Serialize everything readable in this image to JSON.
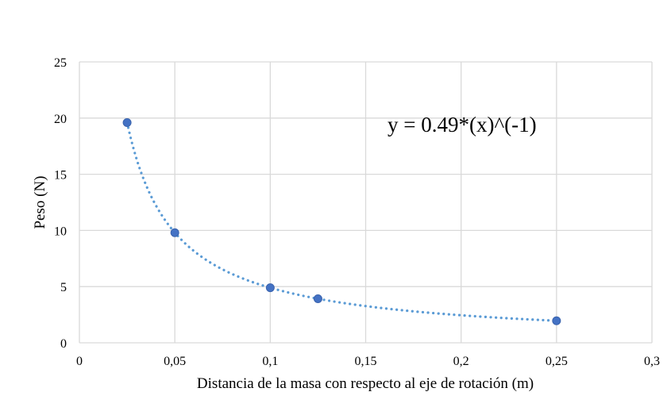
{
  "chart_data": {
    "type": "scatter",
    "title": "",
    "xlabel": "Distancia de la masa con respecto al eje de rotación (m)",
    "ylabel": "Peso  (N)",
    "xlim": [
      0,
      0.3
    ],
    "ylim": [
      0,
      25
    ],
    "x_tick_labels": [
      "0",
      "0,05",
      "0,1",
      "0,15",
      "0,2",
      "0,25",
      "0,3"
    ],
    "y_tick_labels": [
      "0",
      "5",
      "10",
      "15",
      "20",
      "25"
    ],
    "grid": true,
    "legend": "none",
    "series": [
      {
        "x": [
          0.025,
          0.05,
          0.1,
          0.125,
          0.25
        ],
        "y": [
          19.6,
          9.8,
          4.9,
          3.92,
          1.96
        ],
        "color": "#4472C4"
      }
    ],
    "trendline": {
      "type": "power",
      "coefficient": 0.49,
      "exponent": -1,
      "style": "dotted",
      "color": "#5B9BD5",
      "x_range": [
        0.025,
        0.25
      ],
      "equation_label": "y = 0.49*(x)^(-1)"
    }
  }
}
